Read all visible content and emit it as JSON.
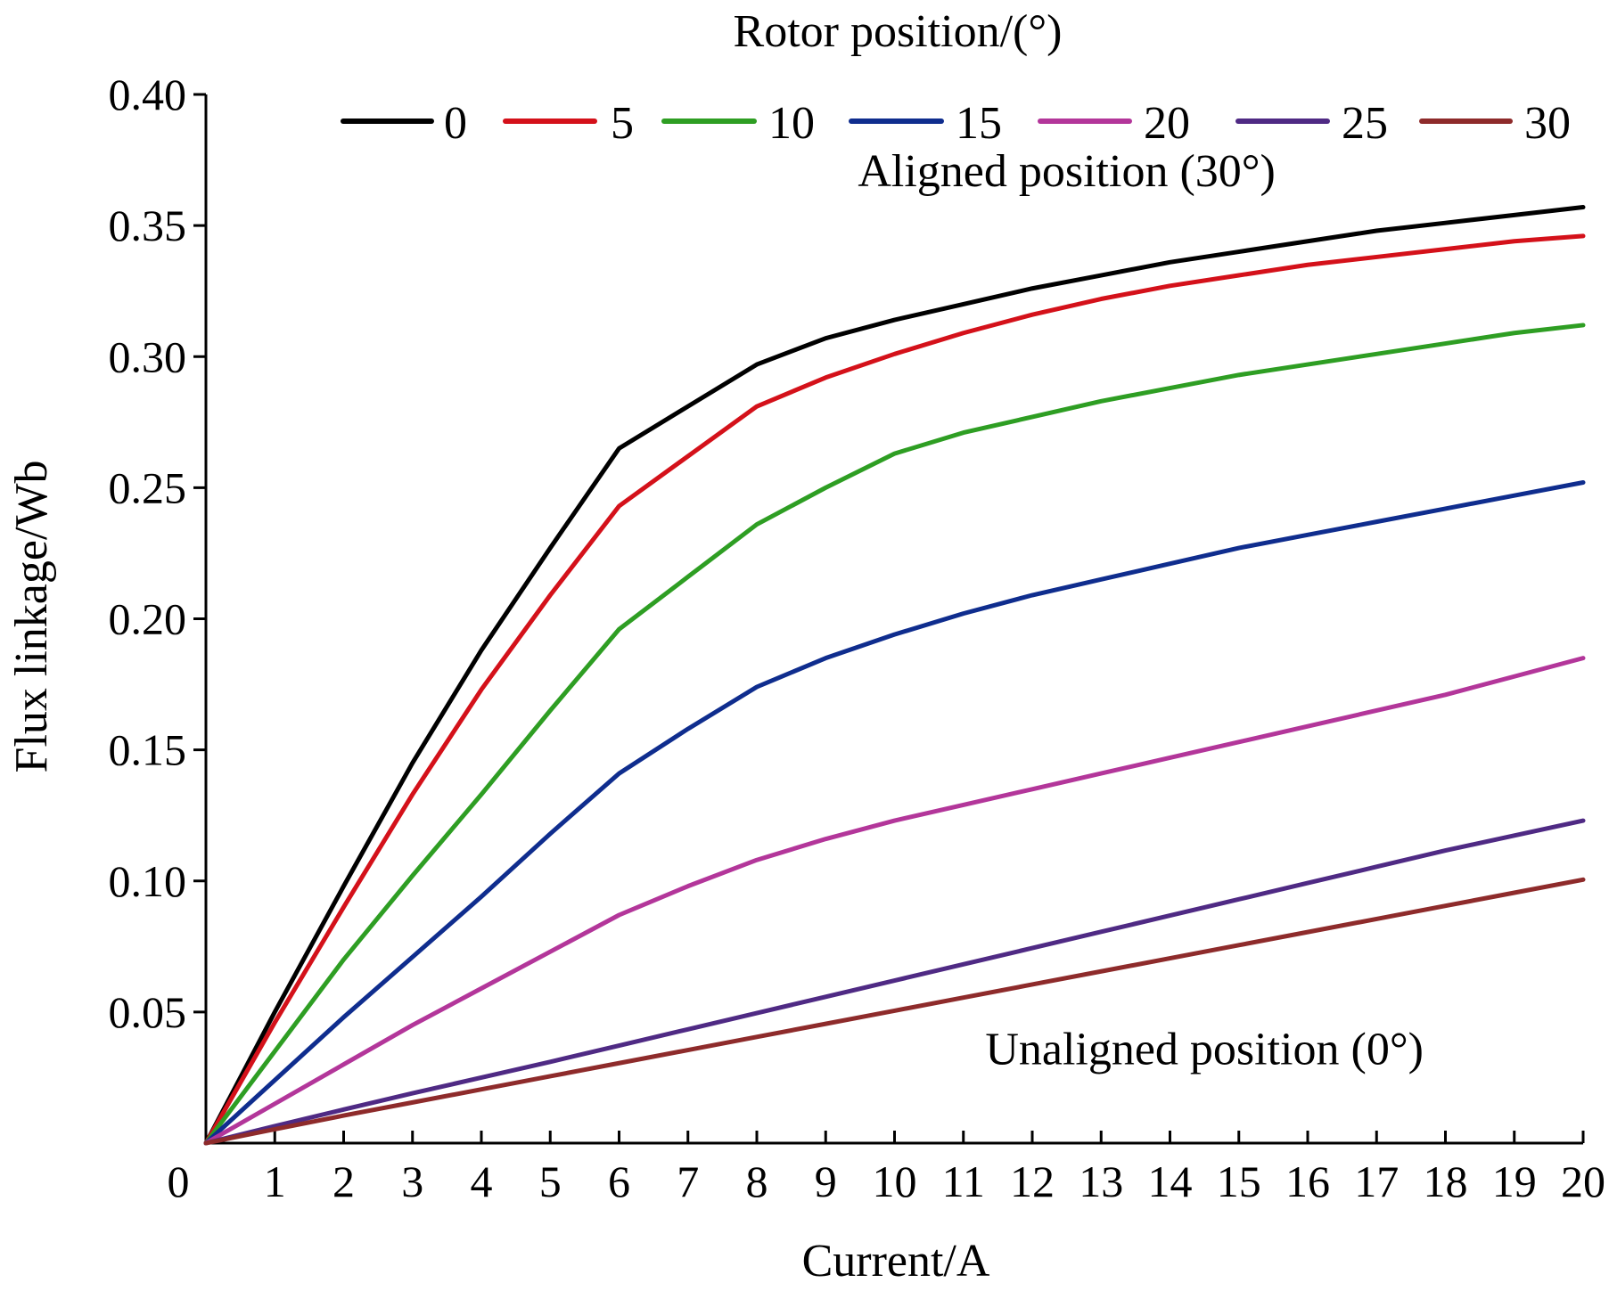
{
  "chart_data": {
    "type": "line",
    "title": "",
    "xlabel": "Current/A",
    "ylabel": "Flux linkage/Wb",
    "xlim": [
      0,
      20
    ],
    "ylim": [
      0,
      0.4
    ],
    "x_ticks": [
      0,
      1,
      2,
      3,
      4,
      5,
      6,
      7,
      8,
      9,
      10,
      11,
      12,
      13,
      14,
      15,
      16,
      17,
      18,
      19,
      20
    ],
    "x_tick_labels": [
      "0",
      "1",
      "2",
      "3",
      "4",
      "5",
      "6",
      "7",
      "8",
      "9",
      "10",
      "11",
      "12",
      "13",
      "14",
      "15",
      "16",
      "17",
      "18",
      "19",
      "20"
    ],
    "y_ticks": [
      0.05,
      0.1,
      0.15,
      0.2,
      0.25,
      0.3,
      0.35,
      0.4
    ],
    "y_tick_labels": [
      "0.05",
      "0.10",
      "0.15",
      "0.20",
      "0.25",
      "0.30",
      "0.35",
      "0.40"
    ],
    "grid": false,
    "legend_title": "Rotor position/(°)",
    "legend_placement": "top",
    "annotations": [
      {
        "text": "Aligned position (30°)",
        "x": 12.5,
        "y": 0.365
      },
      {
        "text": "Unaligned position (0°)",
        "x": 14.5,
        "y": 0.03
      }
    ],
    "x": [
      0,
      1,
      2,
      3,
      4,
      5,
      6,
      7,
      8,
      9,
      10,
      11,
      12,
      13,
      14,
      15,
      16,
      17,
      18,
      19,
      20
    ],
    "series": [
      {
        "name": "0",
        "color": "#000000",
        "values": [
          0,
          0.05,
          0.098,
          0.145,
          0.188,
          0.227,
          0.265,
          0.281,
          0.297,
          0.307,
          0.314,
          0.32,
          0.326,
          0.331,
          0.336,
          0.34,
          0.344,
          0.348,
          0.351,
          0.354,
          0.357
        ]
      },
      {
        "name": "5",
        "color": "#d4111a",
        "values": [
          0,
          0.046,
          0.09,
          0.133,
          0.173,
          0.209,
          0.243,
          0.262,
          0.281,
          0.292,
          0.301,
          0.309,
          0.316,
          0.322,
          0.327,
          0.331,
          0.335,
          0.338,
          0.341,
          0.344,
          0.346
        ]
      },
      {
        "name": "10",
        "color": "#2e9e23",
        "values": [
          0,
          0.035,
          0.07,
          0.102,
          0.133,
          0.165,
          0.196,
          0.216,
          0.236,
          0.25,
          0.263,
          0.271,
          0.277,
          0.283,
          0.288,
          0.293,
          0.297,
          0.301,
          0.305,
          0.309,
          0.312
        ]
      },
      {
        "name": "15",
        "color": "#0f2d8e",
        "values": [
          0,
          0.024,
          0.048,
          0.071,
          0.094,
          0.118,
          0.141,
          0.158,
          0.174,
          0.185,
          0.194,
          0.202,
          0.209,
          0.215,
          0.221,
          0.227,
          0.232,
          0.237,
          0.242,
          0.247,
          0.252
        ]
      },
      {
        "name": "20",
        "color": "#b3369a",
        "values": [
          0,
          0.015,
          0.03,
          0.045,
          0.059,
          0.073,
          0.087,
          0.098,
          0.108,
          0.116,
          0.123,
          0.129,
          0.135,
          0.141,
          0.147,
          0.153,
          0.159,
          0.165,
          0.171,
          0.178,
          0.185
        ]
      },
      {
        "name": "25",
        "color": "#4f2a84",
        "values": [
          0,
          0.0065,
          0.0128,
          0.019,
          0.025,
          0.031,
          0.0372,
          0.0434,
          0.0496,
          0.0558,
          0.062,
          0.0682,
          0.0744,
          0.0806,
          0.0868,
          0.093,
          0.0992,
          0.1054,
          0.1116,
          0.1173,
          0.123
        ]
      },
      {
        "name": "30",
        "color": "#8e2b2b",
        "values": [
          0,
          0.0053,
          0.0105,
          0.0155,
          0.0205,
          0.0255,
          0.0305,
          0.0355,
          0.0405,
          0.0455,
          0.0505,
          0.0555,
          0.0605,
          0.0655,
          0.0705,
          0.0755,
          0.0805,
          0.0855,
          0.0905,
          0.0955,
          0.1005
        ]
      }
    ]
  }
}
